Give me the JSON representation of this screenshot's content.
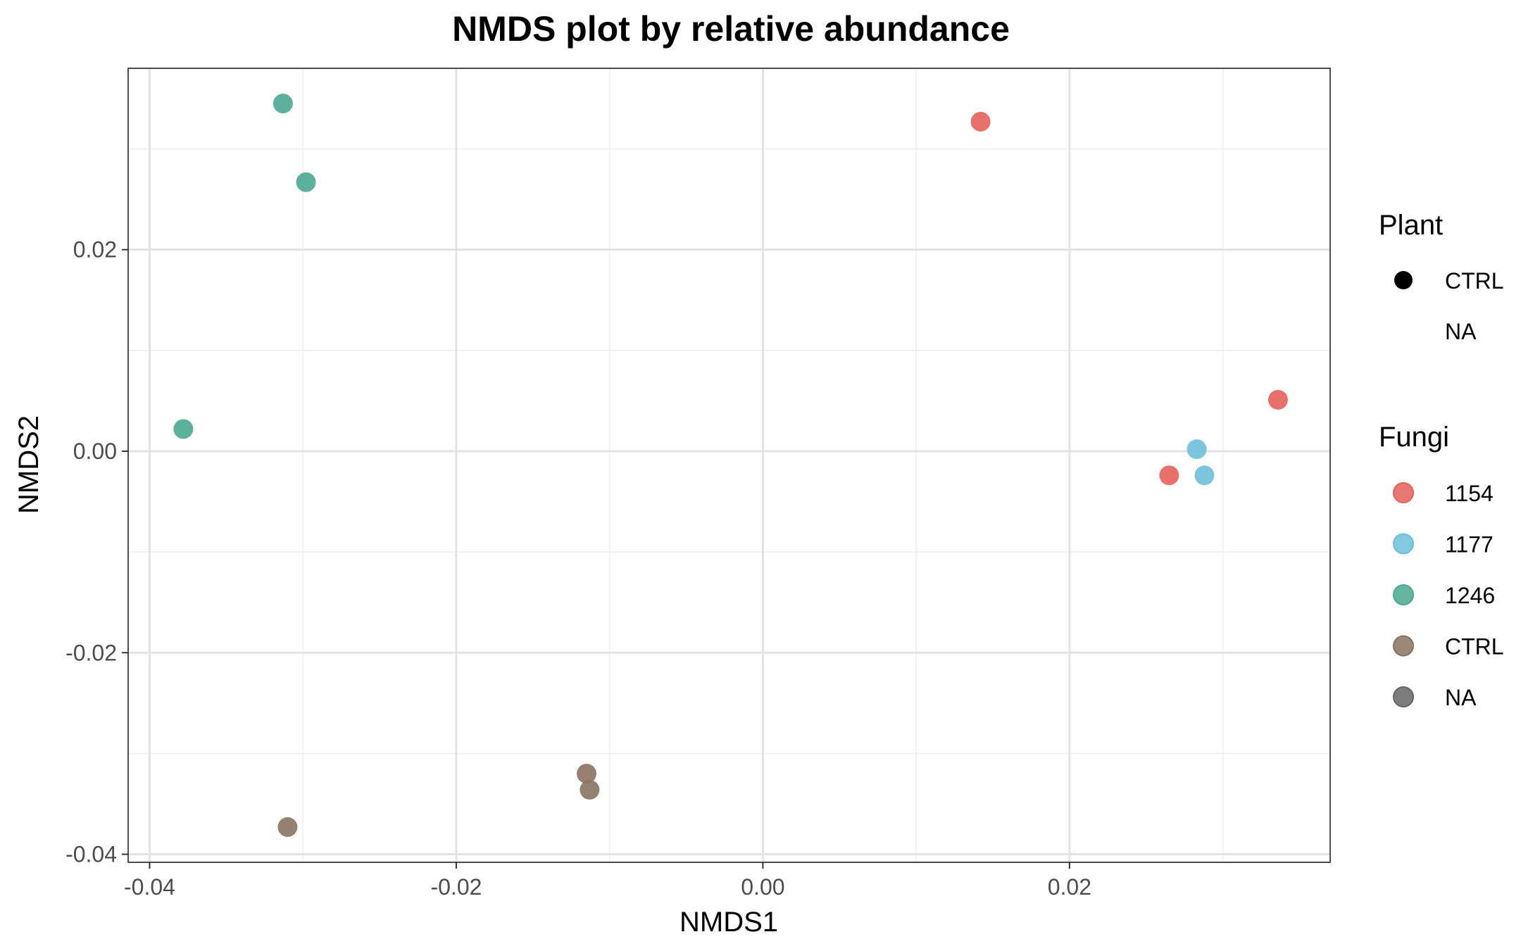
{
  "chart_data": {
    "type": "scatter",
    "title": "NMDS plot by relative abundance",
    "xlabel": "NMDS1",
    "ylabel": "NMDS2",
    "xlim": [
      -0.0414,
      0.037
    ],
    "ylim": [
      -0.0408,
      0.038
    ],
    "x_ticks": [
      -0.04,
      -0.02,
      0.0,
      0.02
    ],
    "x_tick_labels": [
      "-0.04",
      "-0.02",
      "0.00",
      "0.02"
    ],
    "y_ticks": [
      -0.04,
      -0.02,
      0.0,
      0.02
    ],
    "y_tick_labels": [
      "-0.04",
      "-0.02",
      "0.00",
      "0.02"
    ],
    "grid": true,
    "legend_position": "right",
    "legends": {
      "plant": {
        "title": "Plant",
        "entries": [
          {
            "label": "CTRL",
            "shape": "circle"
          },
          {
            "label": "NA",
            "shape": "none"
          }
        ]
      },
      "fungi": {
        "title": "Fungi",
        "entries": [
          {
            "label": "1154",
            "color": "#E4605B"
          },
          {
            "label": "1177",
            "color": "#6DBFDB"
          },
          {
            "label": "1246",
            "color": "#4AA891"
          },
          {
            "label": "CTRL",
            "color": "#8A7361"
          },
          {
            "label": "NA",
            "color": "#666666"
          }
        ]
      }
    },
    "series": [
      {
        "name": "1154",
        "color": "#E4605B",
        "points": [
          {
            "x": 0.0142,
            "y": 0.0327
          },
          {
            "x": 0.0336,
            "y": 0.0051
          },
          {
            "x": 0.0265,
            "y": -0.0024
          }
        ]
      },
      {
        "name": "1177",
        "color": "#6DBFDB",
        "points": [
          {
            "x": 0.0283,
            "y": 0.0002
          },
          {
            "x": 0.0288,
            "y": -0.0024
          }
        ]
      },
      {
        "name": "1246",
        "color": "#4AA891",
        "points": [
          {
            "x": -0.0313,
            "y": 0.0345
          },
          {
            "x": -0.0298,
            "y": 0.0267
          },
          {
            "x": -0.0378,
            "y": 0.0022
          }
        ]
      },
      {
        "name": "CTRL",
        "color": "#8A7361",
        "points": [
          {
            "x": -0.0115,
            "y": -0.032
          },
          {
            "x": -0.0113,
            "y": -0.0336
          },
          {
            "x": -0.031,
            "y": -0.0373
          }
        ]
      }
    ]
  }
}
